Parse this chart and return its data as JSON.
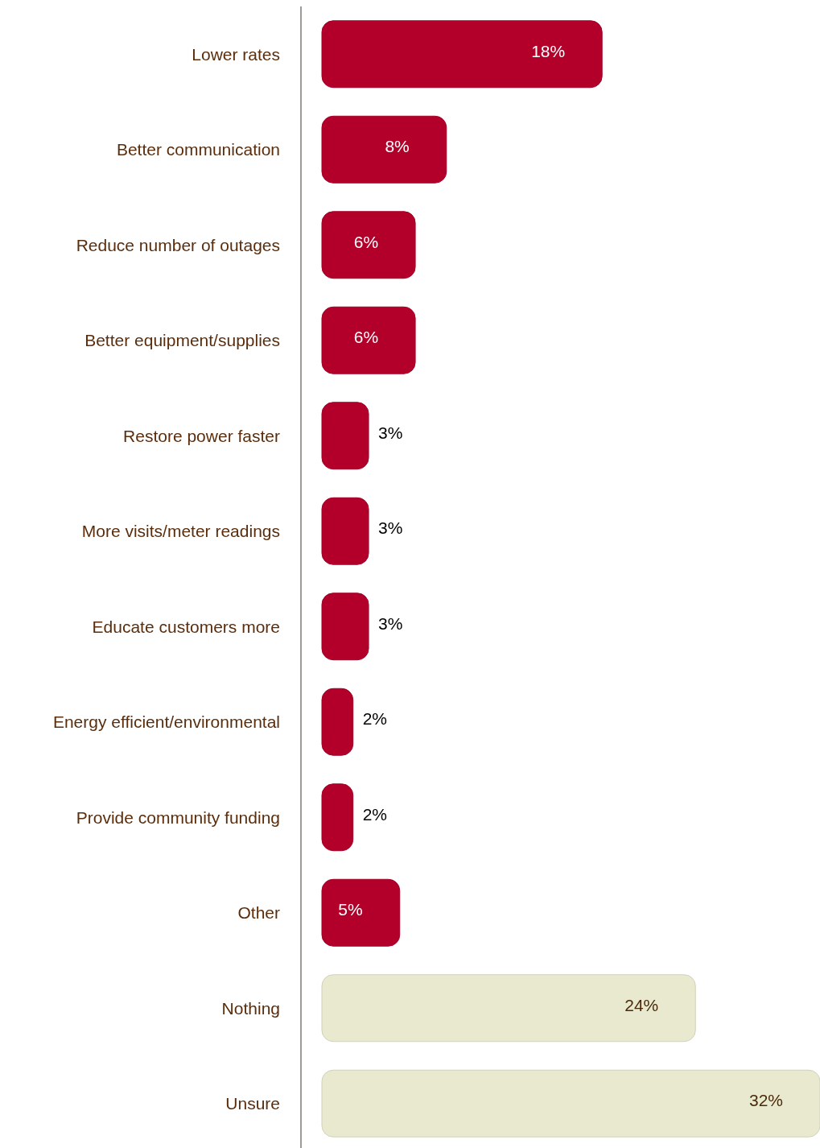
{
  "chart_data": {
    "type": "bar",
    "orientation": "horizontal",
    "categories": [
      "Lower rates",
      "Better communication",
      "Reduce number of outages",
      "Better equipment/supplies",
      "Restore power faster",
      "More visits/meter readings",
      "Educate customers more",
      "Energy efficient/environmental",
      "Provide community funding",
      "Other",
      "Nothing",
      "Unsure"
    ],
    "values": [
      18,
      8,
      6,
      6,
      3,
      3,
      3,
      2,
      2,
      5,
      24,
      32
    ],
    "value_labels": [
      "18%",
      "8%",
      "6%",
      "6%",
      "3%",
      "3%",
      "3%",
      "2%",
      "2%",
      "5%",
      "24%",
      "32%"
    ],
    "colors": [
      "#b3002a",
      "#b3002a",
      "#b3002a",
      "#b3002a",
      "#b3002a",
      "#b3002a",
      "#b3002a",
      "#b3002a",
      "#b3002a",
      "#b3002a",
      "#e9e9d0",
      "#e9e9d0"
    ]
  }
}
